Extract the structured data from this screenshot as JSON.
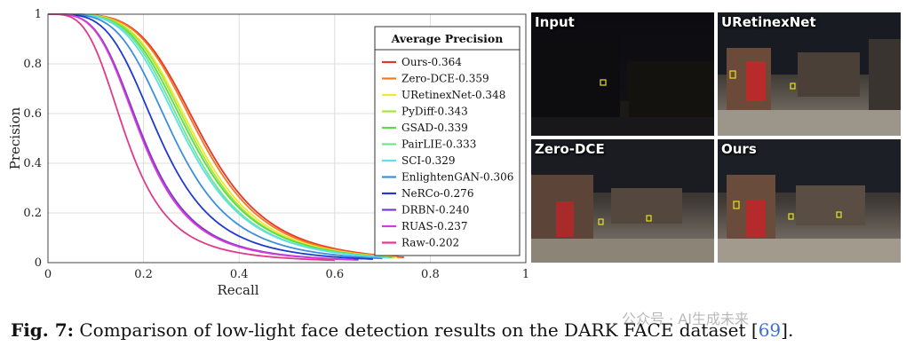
{
  "chart_data": {
    "type": "line",
    "title": "",
    "xlabel": "Recall",
    "ylabel": "Precision",
    "xlim": [
      0,
      1
    ],
    "ylim": [
      0,
      1
    ],
    "xticks": [
      "0",
      "0.2",
      "0.4",
      "0.6",
      "0.8",
      "1"
    ],
    "yticks": [
      "0",
      "0.2",
      "0.4",
      "0.6",
      "0.8",
      "1"
    ],
    "grid": true,
    "legend": {
      "title": "Average Precision",
      "position": "top-right"
    },
    "series": [
      {
        "name": "Ours-0.364",
        "color": "#e8342b",
        "rmax": 0.745,
        "shape": {
          "a": 0.325,
          "b": 4.6
        }
      },
      {
        "name": "Zero-DCE-0.359",
        "color": "#f07a22",
        "rmax": 0.74,
        "shape": {
          "a": 0.32,
          "b": 4.6
        }
      },
      {
        "name": "URetinexNet-0.348",
        "color": "#f2e62e",
        "rmax": 0.73,
        "shape": {
          "a": 0.31,
          "b": 4.5
        }
      },
      {
        "name": "PyDiff-0.343",
        "color": "#a6e53a",
        "rmax": 0.725,
        "shape": {
          "a": 0.305,
          "b": 4.5
        }
      },
      {
        "name": "GSAD-0.339",
        "color": "#5cdc4a",
        "rmax": 0.72,
        "shape": {
          "a": 0.3,
          "b": 4.4
        }
      },
      {
        "name": "PairLIE-0.333",
        "color": "#6fe58c",
        "rmax": 0.715,
        "shape": {
          "a": 0.293,
          "b": 4.4
        }
      },
      {
        "name": "SCI-0.329",
        "color": "#5de0e8",
        "rmax": 0.71,
        "shape": {
          "a": 0.288,
          "b": 4.3
        }
      },
      {
        "name": "EnlightenGAN-0.306",
        "color": "#3b8fdc",
        "rmax": 0.7,
        "shape": {
          "a": 0.265,
          "b": 4.2
        }
      },
      {
        "name": "NeRCo-0.276",
        "color": "#1f3ad0",
        "rmax": 0.68,
        "shape": {
          "a": 0.235,
          "b": 4.0
        }
      },
      {
        "name": "DRBN-0.240",
        "color": "#7a3cc8",
        "rmax": 0.65,
        "shape": {
          "a": 0.2,
          "b": 3.8
        }
      },
      {
        "name": "RUAS-0.237",
        "color": "#d83ad8",
        "rmax": 0.64,
        "shape": {
          "a": 0.197,
          "b": 3.8
        }
      },
      {
        "name": "Raw-0.202",
        "color": "#e03a8a",
        "rmax": 0.6,
        "shape": {
          "a": 0.165,
          "b": 3.6
        }
      }
    ]
  },
  "photos": [
    {
      "label": "Input"
    },
    {
      "label": "URetinexNet"
    },
    {
      "label": "Zero-DCE"
    },
    {
      "label": "Ours"
    }
  ],
  "caption": {
    "fig_label": "Fig. 7:",
    "text": " Comparison of low-light face detection results on the DARK FACE dataset [",
    "ref": "69",
    "end": "]."
  },
  "watermark": "公众号 · AI生成未来"
}
